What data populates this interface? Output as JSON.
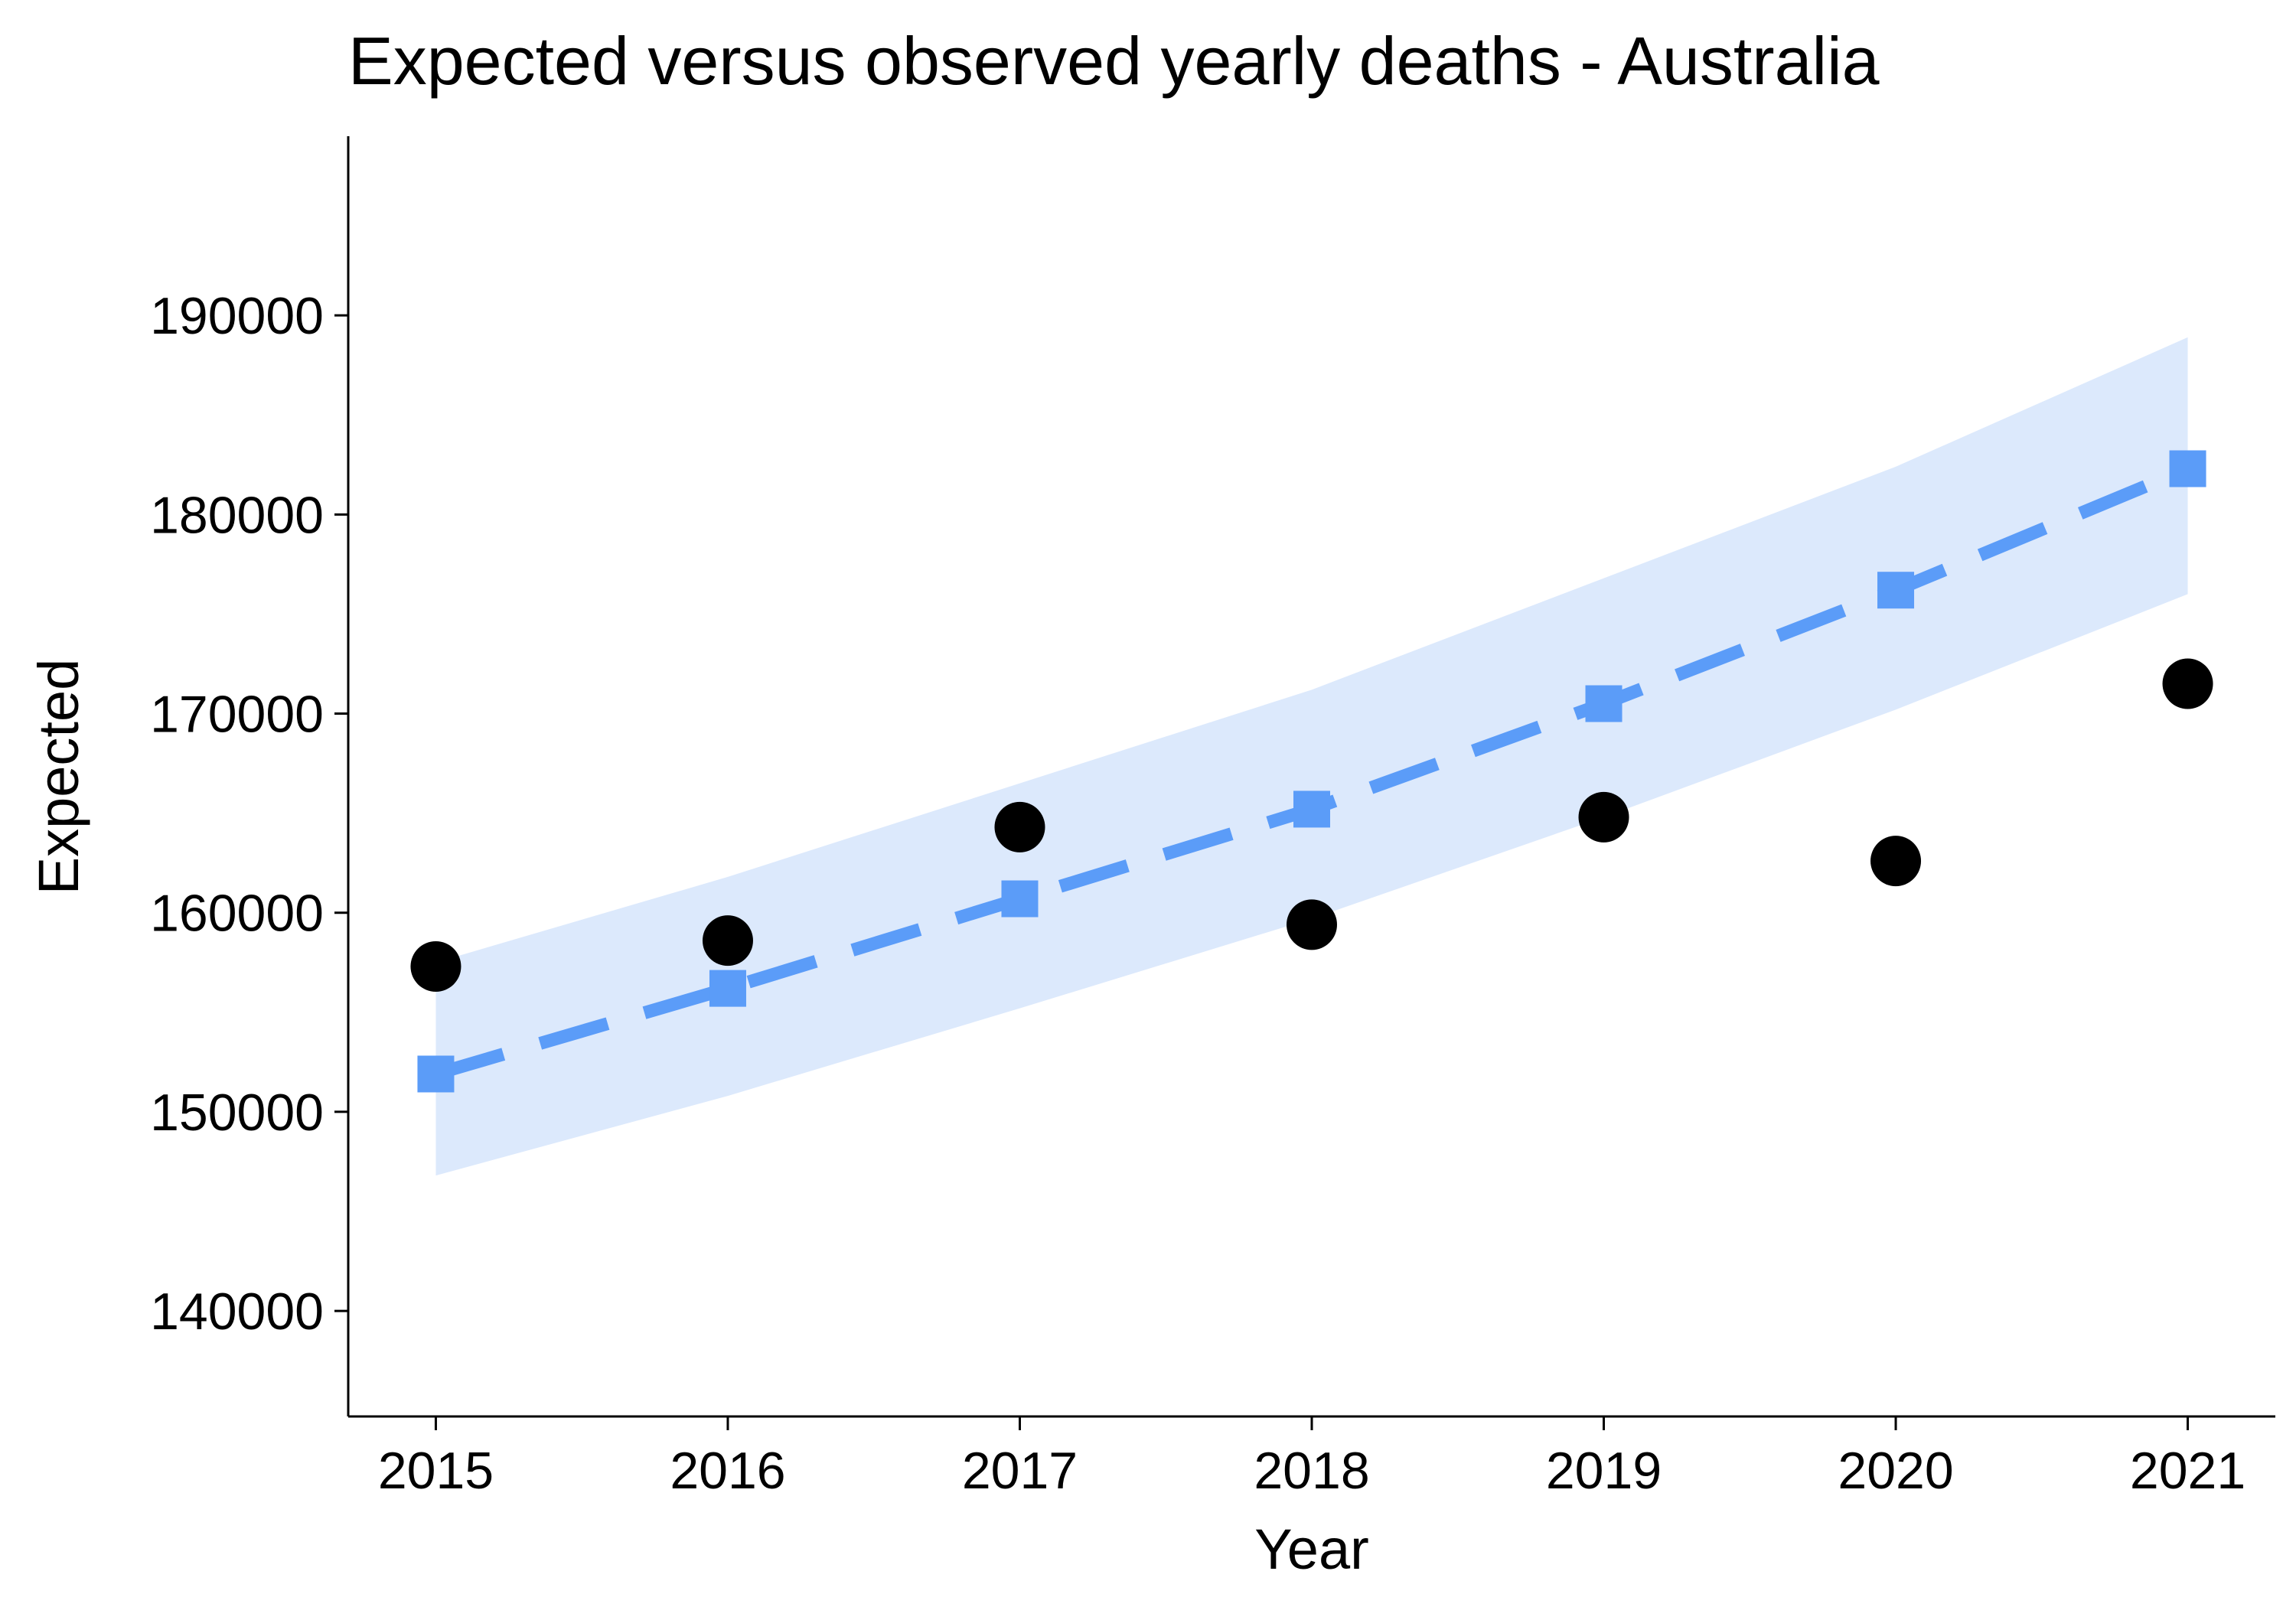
{
  "chart_data": {
    "type": "line",
    "title": "Expected versus observed yearly deaths - Australia",
    "xlabel": "Year",
    "ylabel": "Expected",
    "x": [
      2015,
      2016,
      2017,
      2018,
      2019,
      2020,
      2021
    ],
    "x_tick_labels": [
      "2015",
      "2016",
      "2017",
      "2018",
      "2019",
      "2020",
      "2021"
    ],
    "y_ticks": [
      140000,
      150000,
      160000,
      170000,
      180000,
      190000
    ],
    "y_tick_labels": [
      "140000",
      "150000",
      "160000",
      "170000",
      "180000",
      "190000"
    ],
    "xlim": [
      2014.7,
      2021.3
    ],
    "ylim": [
      134700,
      199000
    ],
    "grid": false,
    "series": [
      {
        "kind": "band",
        "lower": [
          146800,
          150800,
          155200,
          159700,
          164800,
          170200,
          176000
        ],
        "upper": [
          157500,
          161800,
          166500,
          171200,
          176800,
          182400,
          188900
        ],
        "color": "#dce9fc"
      },
      {
        "kind": "line",
        "values": [
          151900,
          156200,
          160700,
          165200,
          170500,
          176200,
          182300
        ],
        "color": "#5b9cf8",
        "style": "dashed",
        "marker": "square"
      },
      {
        "kind": "scatter",
        "values": [
          157300,
          158600,
          164300,
          159400,
          164800,
          162600,
          171500
        ],
        "color": "#000000",
        "marker": "circle"
      }
    ]
  }
}
